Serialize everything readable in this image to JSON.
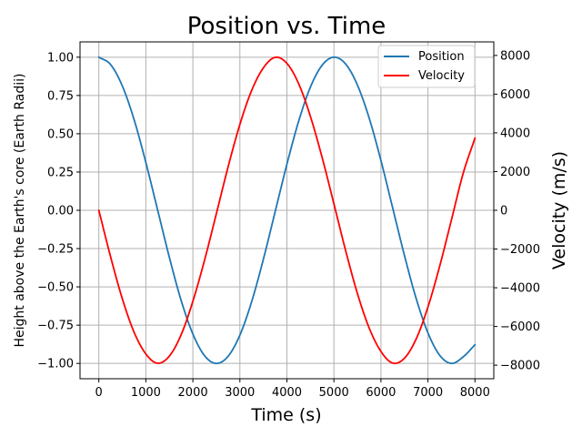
{
  "chart_data": {
    "type": "line",
    "title": "Position vs. Time",
    "xlabel": "Time (s)",
    "ylabel_left": "Height above the Earth's core (Earth Radii)",
    "ylabel_right": "Velocity (m/s)",
    "xlim": [
      -400,
      8400
    ],
    "ylim_left": [
      -1.1,
      1.1
    ],
    "ylim_right": [
      -8700,
      8700
    ],
    "x_ticks": [
      "0",
      "1000",
      "2000",
      "3000",
      "4000",
      "5000",
      "6000",
      "7000",
      "8000"
    ],
    "x_tick_values": [
      0,
      1000,
      2000,
      3000,
      4000,
      5000,
      6000,
      7000,
      8000
    ],
    "y_left_ticks": [
      "1.00",
      "0.75",
      "0.50",
      "0.25",
      "0.00",
      "−0.25",
      "−0.50",
      "−0.75",
      "−1.00"
    ],
    "y_left_tick_values": [
      1.0,
      0.75,
      0.5,
      0.25,
      0.0,
      -0.25,
      -0.5,
      -0.75,
      -1.0
    ],
    "y_right_ticks": [
      "8000",
      "6000",
      "4000",
      "2000",
      "0",
      "−2000",
      "−4000",
      "−6000",
      "−8000"
    ],
    "y_right_tick_values": [
      8000,
      6000,
      4000,
      2000,
      0,
      -2000,
      -4000,
      -6000,
      -8000
    ],
    "grid": true,
    "legend_position": "top-right",
    "series": [
      {
        "name": "Position",
        "axis": "left",
        "color": "#1f77b4",
        "x": [
          0,
          250,
          500,
          750,
          1000,
          1250,
          1500,
          1750,
          2000,
          2250,
          2500,
          2750,
          3000,
          3250,
          3500,
          3750,
          4000,
          4250,
          4500,
          4750,
          5000,
          5250,
          5500,
          5750,
          6000,
          6250,
          6500,
          6750,
          7000,
          7250,
          7500,
          7750,
          8000
        ],
        "y": [
          1.0,
          0.952,
          0.812,
          0.592,
          0.312,
          0.003,
          -0.307,
          -0.588,
          -0.808,
          -0.95,
          -1.0,
          -0.953,
          -0.815,
          -0.597,
          -0.319,
          -0.009,
          0.301,
          0.582,
          0.805,
          0.948,
          1.0,
          0.955,
          0.818,
          0.602,
          0.325,
          0.015,
          -0.295,
          -0.577,
          -0.801,
          -0.947,
          -1.0,
          -0.957,
          -0.878
        ]
      },
      {
        "name": "Velocity",
        "axis": "right",
        "color": "#ff0000",
        "x": [
          0,
          250,
          500,
          750,
          1000,
          1250,
          1500,
          1750,
          2000,
          2250,
          2500,
          2750,
          3000,
          3250,
          3500,
          3750,
          4000,
          4250,
          4500,
          4750,
          5000,
          5250,
          5500,
          5750,
          6000,
          6250,
          6500,
          6750,
          7000,
          7250,
          7500,
          7750,
          8000
        ],
        "y": [
          0,
          -2400,
          -4570,
          -6300,
          -7420,
          -7900,
          -7530,
          -6430,
          -4700,
          -2560,
          -170,
          2250,
          4440,
          6190,
          7360,
          7900,
          7590,
          6540,
          4850,
          2720,
          330,
          -2090,
          -4300,
          -6080,
          -7290,
          -7890,
          -7640,
          -6640,
          -4990,
          -2880,
          -490,
          1920,
          3730
        ]
      }
    ]
  }
}
